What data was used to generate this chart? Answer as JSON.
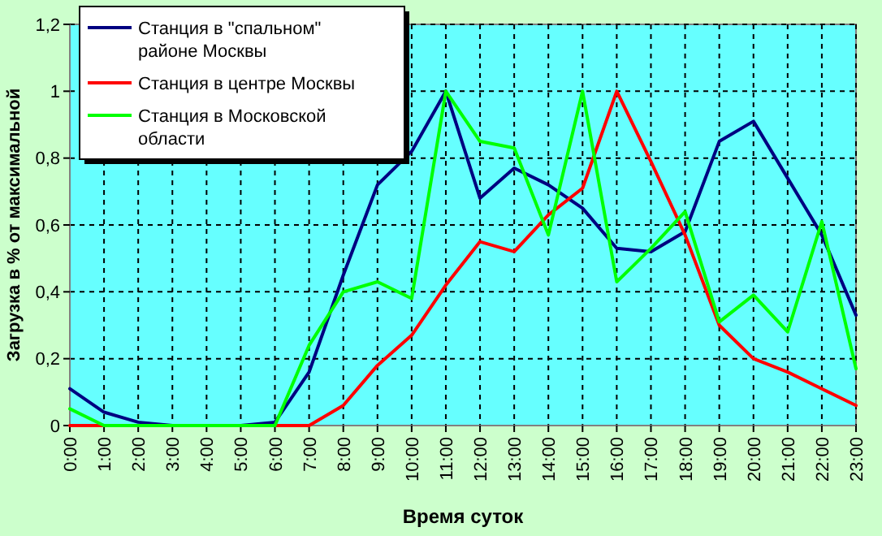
{
  "chart_data": {
    "type": "line",
    "xlabel": "Время суток",
    "ylabel": "Загрузка в % от максимальной",
    "categories": [
      "0:00",
      "1:00",
      "2:00",
      "3:00",
      "4:00",
      "5:00",
      "6:00",
      "7:00",
      "8:00",
      "9:00",
      "10:00",
      "11:00",
      "12:00",
      "13:00",
      "14:00",
      "15:00",
      "16:00",
      "17:00",
      "18:00",
      "19:00",
      "20:00",
      "21:00",
      "22:00",
      "23:00"
    ],
    "series": [
      {
        "name": "Станция в \"спальном\" районе Москвы",
        "color": "#000080",
        "values": [
          0.11,
          0.04,
          0.01,
          0,
          0,
          0,
          0.01,
          0.16,
          0.45,
          0.72,
          0.82,
          1.0,
          0.68,
          0.77,
          0.72,
          0.65,
          0.53,
          0.52,
          0.58,
          0.85,
          0.91,
          0.74,
          0.57,
          0.33
        ]
      },
      {
        "name": "Станция в центре Москвы",
        "color": "#ff0000",
        "values": [
          0,
          0,
          0,
          0,
          0,
          0,
          0,
          0,
          0.06,
          0.18,
          0.27,
          0.42,
          0.55,
          0.52,
          0.63,
          0.71,
          1.0,
          0.79,
          0.57,
          0.3,
          0.2,
          0.16,
          0.11,
          0.06
        ]
      },
      {
        "name": "Станция в Московской области",
        "color": "#00ff00",
        "values": [
          0.05,
          0,
          0,
          0,
          0,
          0,
          0,
          0.24,
          0.4,
          0.43,
          0.38,
          1.0,
          0.85,
          0.83,
          0.57,
          1.0,
          0.43,
          0.53,
          0.64,
          0.31,
          0.39,
          0.28,
          0.61,
          0.17
        ]
      }
    ],
    "ylim": [
      0,
      1.2
    ],
    "yticks": [
      0,
      {
        "value": 0.2,
        "label": "0,2"
      },
      {
        "value": 0.4,
        "label": "0,4"
      },
      {
        "value": 0.6,
        "label": "0,6"
      },
      {
        "value": 0.8,
        "label": "0,8"
      },
      {
        "value": 1,
        "label": "1"
      },
      {
        "value": 1.2,
        "label": "1,2"
      }
    ],
    "grid": true,
    "legend": "top left",
    "line_style": "solid",
    "marker": "none"
  }
}
